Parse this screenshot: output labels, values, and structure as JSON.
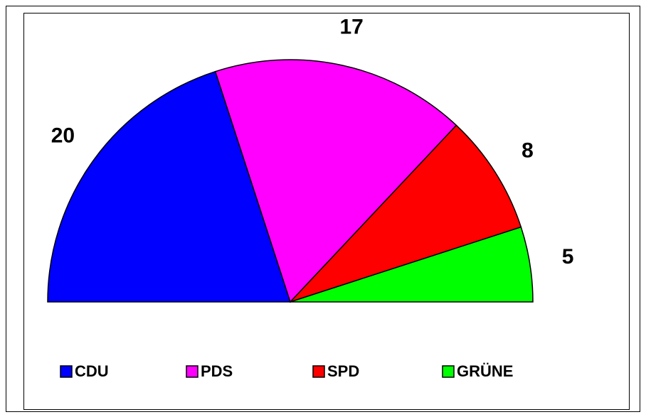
{
  "chart_data": {
    "type": "semicircle",
    "categories": [
      "CDU",
      "PDS",
      "SPD",
      "GRÜNE"
    ],
    "values": [
      20,
      17,
      8,
      5
    ],
    "colors": [
      "#0000ff",
      "#ff00ff",
      "#ff0000",
      "#00ff00"
    ],
    "legend": "bottom"
  }
}
